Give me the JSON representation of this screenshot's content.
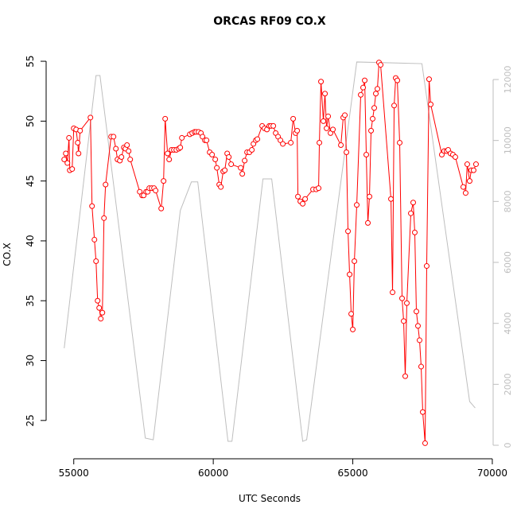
{
  "chart_data": {
    "type": "line",
    "title": "ORCAS RF09 CO.X",
    "x_label": "UTC Seconds",
    "y_label": "CO.X",
    "xlim": [
      54010,
      70030
    ],
    "ylim": [
      21.8,
      56.0
    ],
    "y2lim": [
      -443,
      12991
    ],
    "xticks": [
      55000,
      60000,
      65000,
      70000
    ],
    "yticks": [
      25,
      30,
      35,
      40,
      45,
      50,
      55
    ],
    "y2ticks": [
      0,
      2000,
      4000,
      6000,
      8000,
      10000,
      12000
    ],
    "series": [
      {
        "color": "#bebebe",
        "axis": "y2",
        "marker": "none",
        "x": [
          54658,
          55798,
          55940,
          57564,
          57849,
          58818,
          59216,
          59444,
          60527,
          60670,
          61781,
          62094,
          63205,
          63347,
          65142,
          67478,
          69188,
          69387
        ],
        "values": [
          3183,
          12130,
          12130,
          235,
          180,
          7700,
          8640,
          8640,
          130,
          130,
          8740,
          8740,
          130,
          180,
          12575,
          12520,
          1435,
          1226
        ]
      },
      {
        "color": "#ff0000",
        "axis": "y",
        "marker": "circle",
        "x": [
          54658,
          54715,
          54772,
          54829,
          54858,
          54943,
          55000,
          55085,
          55142,
          55171,
          55228,
          55598,
          55655,
          55741,
          55798,
          55855,
          55912,
          55969,
          56026,
          56083,
          56140,
          56339,
          56425,
          56510,
          56567,
          56652,
          56709,
          56795,
          56852,
          56909,
          56966,
          57023,
          57365,
          57450,
          57507,
          57593,
          57650,
          57707,
          57792,
          57877,
          57934,
          58134,
          58219,
          58276,
          58362,
          58419,
          58504,
          58589,
          58675,
          58760,
          58817,
          58874,
          59159,
          59245,
          59330,
          59387,
          59473,
          59558,
          59615,
          59701,
          59758,
          59872,
          59957,
          60071,
          60128,
          60214,
          60271,
          60356,
          60413,
          60499,
          60556,
          60641,
          60983,
          61040,
          61125,
          61211,
          61296,
          61382,
          61439,
          61524,
          61581,
          61752,
          61838,
          61923,
          62009,
          62066,
          62151,
          62237,
          62322,
          62407,
          62493,
          62778,
          62863,
          62949,
          63006,
          63034,
          63120,
          63205,
          63291,
          63575,
          63689,
          63775,
          63803,
          63860,
          63946,
          64003,
          64060,
          64117,
          64202,
          64288,
          64573,
          64658,
          64715,
          64772,
          64829,
          64886,
          64943,
          65000,
          65057,
          65142,
          65285,
          65370,
          65427,
          65484,
          65541,
          65598,
          65655,
          65712,
          65769,
          65826,
          65883,
          65940,
          65997,
          66368,
          66425,
          66482,
          66539,
          66596,
          66681,
          66766,
          66823,
          66880,
          66937,
          67080,
          67165,
          67222,
          67279,
          67336,
          67393,
          67450,
          67507,
          67592,
          67649,
          67735,
          67792,
          68191,
          68276,
          68362,
          68419,
          68504,
          68589,
          68675,
          68960,
          69045,
          69102,
          69188,
          69245,
          69330,
          69416
        ],
        "values": [
          46.8,
          47.3,
          46.5,
          48.6,
          45.9,
          46.0,
          49.4,
          49.3,
          48.2,
          47.3,
          49.2,
          50.3,
          42.9,
          40.1,
          38.3,
          35.0,
          34.4,
          33.5,
          34.0,
          41.9,
          44.7,
          48.7,
          48.7,
          47.7,
          46.8,
          46.7,
          47.0,
          47.8,
          47.7,
          48.0,
          47.5,
          46.8,
          44.1,
          43.8,
          43.8,
          44.1,
          44.1,
          44.4,
          44.4,
          44.4,
          44.2,
          42.7,
          45.0,
          50.2,
          47.3,
          46.8,
          47.6,
          47.6,
          47.6,
          47.7,
          47.8,
          48.6,
          48.9,
          49.0,
          49.1,
          49.1,
          49.1,
          49.0,
          48.7,
          48.4,
          48.4,
          47.4,
          47.2,
          46.8,
          46.1,
          44.7,
          44.5,
          45.8,
          45.9,
          47.3,
          47.0,
          46.4,
          46.1,
          45.6,
          46.7,
          47.4,
          47.4,
          47.6,
          48.1,
          48.4,
          48.5,
          49.6,
          49.4,
          49.3,
          49.6,
          49.6,
          49.6,
          49.0,
          48.7,
          48.4,
          48.1,
          48.2,
          50.2,
          49.0,
          49.2,
          43.7,
          43.3,
          43.1,
          43.5,
          44.3,
          44.3,
          44.4,
          48.2,
          53.3,
          50.0,
          52.3,
          49.4,
          50.4,
          49.0,
          49.3,
          48.0,
          50.3,
          50.5,
          47.4,
          40.8,
          37.2,
          33.9,
          32.6,
          38.3,
          43.0,
          52.2,
          52.8,
          53.4,
          47.2,
          41.5,
          43.7,
          49.2,
          50.2,
          51.1,
          52.3,
          52.7,
          54.9,
          54.7,
          43.5,
          35.7,
          51.3,
          53.6,
          53.4,
          48.2,
          35.2,
          33.3,
          28.7,
          34.8,
          42.3,
          43.2,
          40.7,
          34.1,
          32.9,
          31.7,
          29.5,
          25.7,
          23.1,
          37.9,
          53.5,
          51.4,
          47.2,
          47.5,
          47.5,
          47.6,
          47.3,
          47.2,
          47.0,
          44.5,
          44.0,
          46.4,
          45.0,
          45.9,
          45.9,
          46.4
        ]
      }
    ]
  }
}
